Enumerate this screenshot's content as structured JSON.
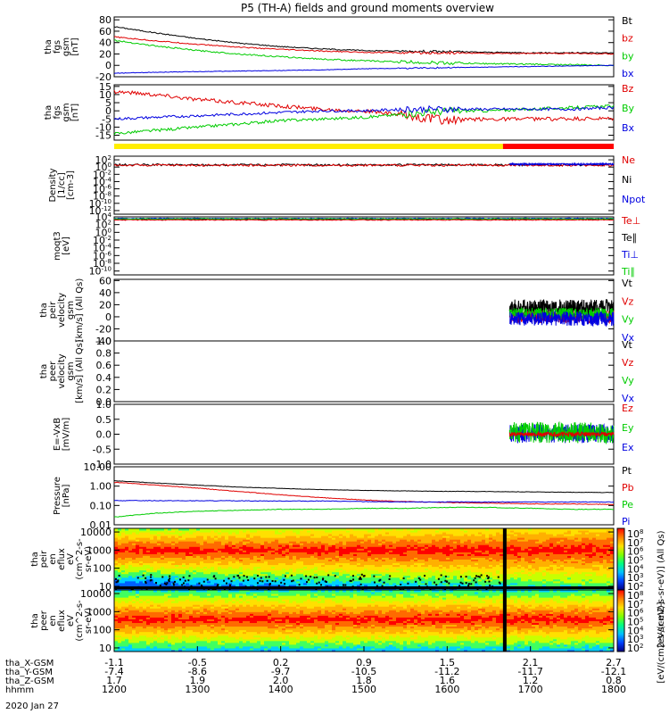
{
  "title": "P5 (TH-A) fields and ground moments overview",
  "date_label": "2020 Jan 27",
  "colorbar_labels": {
    "peir": "[eV/(cm2-s-sr-eV)] (All Qs)",
    "peer": "[eV/(cm2-s-sr-eV)]"
  },
  "chart_data": [
    {
      "type": "line",
      "id": "fgs_gsm",
      "ylabel": [
        "tha",
        "fgs",
        "gsm",
        "[nT]"
      ],
      "ylim": [
        -20,
        85
      ],
      "ticks": [
        "80",
        "60",
        "40",
        "20",
        "0",
        "-20"
      ],
      "tick_values": [
        80,
        60,
        40,
        20,
        0,
        -20
      ],
      "legend": [
        {
          "name": "Bt",
          "color": "#000000"
        },
        {
          "name": "bz",
          "color": "#e00000"
        },
        {
          "name": "by",
          "color": "#00cc00"
        },
        {
          "name": "bx",
          "color": "#0000e0"
        }
      ],
      "series": [
        {
          "name": "Bt",
          "color": "#000000",
          "x": [
            1200,
            1250,
            1300,
            1350,
            1400,
            1450,
            1500,
            1550,
            1600,
            1650,
            1700,
            1750,
            1800
          ],
          "values": [
            68,
            57,
            47,
            39,
            33,
            29,
            26,
            25,
            24,
            23,
            22,
            22,
            22
          ],
          "noise": 0.9
        },
        {
          "name": "bz",
          "color": "#e00000",
          "x": [
            1200,
            1250,
            1300,
            1350,
            1400,
            1450,
            1500,
            1550,
            1600,
            1650,
            1700,
            1750,
            1800
          ],
          "values": [
            50,
            43,
            37,
            32,
            28,
            25,
            23,
            22,
            22,
            21,
            21,
            21,
            20
          ],
          "noise": 0.9
        },
        {
          "name": "by",
          "color": "#00cc00",
          "x": [
            1200,
            1250,
            1300,
            1350,
            1400,
            1450,
            1500,
            1550,
            1600,
            1650,
            1700,
            1750,
            1800
          ],
          "values": [
            44,
            34,
            26,
            20,
            15,
            11,
            8,
            6,
            4,
            3,
            2,
            1,
            0
          ],
          "noise": 1.2
        },
        {
          "name": "bx",
          "color": "#0000e0",
          "x": [
            1200,
            1250,
            1300,
            1350,
            1400,
            1450,
            1500,
            1550,
            1600,
            1650,
            1700,
            1750,
            1800
          ],
          "values": [
            -14,
            -12,
            -11,
            -10,
            -9,
            -8,
            -6,
            -5,
            -4,
            -3,
            -2,
            -1,
            0
          ],
          "noise": 0.5
        }
      ]
    },
    {
      "type": "line",
      "id": "fgs_gse",
      "ylabel": [
        "tha",
        "fgs",
        "gsm",
        "[nT]"
      ],
      "ylim": [
        -18,
        16
      ],
      "ticks": [
        "15",
        "10",
        "5",
        "0",
        "-5",
        "-10",
        "-15"
      ],
      "tick_values": [
        15,
        10,
        5,
        0,
        -5,
        -10,
        -15
      ],
      "legend": [
        {
          "name": "Bz",
          "color": "#e00000"
        },
        {
          "name": "By",
          "color": "#00cc00"
        },
        {
          "name": "Bx",
          "color": "#0000e0"
        }
      ],
      "series": [
        {
          "name": "Bz",
          "color": "#e00000",
          "x": [
            1200,
            1250,
            1300,
            1350,
            1400,
            1450,
            1500,
            1550,
            1600,
            1650,
            1700,
            1750,
            1800
          ],
          "values": [
            12,
            10,
            7,
            5,
            3,
            1,
            0,
            -3,
            -6,
            -5,
            -5,
            -5,
            -5
          ],
          "noise": 1.2
        },
        {
          "name": "By",
          "color": "#00cc00",
          "x": [
            1200,
            1250,
            1300,
            1350,
            1400,
            1450,
            1500,
            1550,
            1600,
            1650,
            1700,
            1750,
            1800
          ],
          "values": [
            -14,
            -12,
            -10,
            -8,
            -6,
            -5,
            -4,
            -2,
            0,
            0,
            1,
            2,
            3
          ],
          "noise": 0.9
        },
        {
          "name": "Bx",
          "color": "#0000e0",
          "x": [
            1200,
            1250,
            1300,
            1350,
            1400,
            1450,
            1500,
            1550,
            1600,
            1650,
            1700,
            1750,
            1800
          ],
          "values": [
            -5,
            -4,
            -3,
            -2,
            -1,
            0,
            0,
            1,
            1,
            1,
            1,
            1,
            2
          ],
          "noise": 0.8
        }
      ]
    },
    {
      "type": "line",
      "id": "density",
      "ylabel": [
        "Density",
        "[1/cc]",
        "[cm-3]"
      ],
      "ylim_log": [
        -13,
        3
      ],
      "ticks": [
        "10^2",
        "10^0",
        "10^-2",
        "10^-4",
        "10^-6",
        "10^-8",
        "10^-10",
        "10^-12"
      ],
      "tick_values": [
        2,
        0,
        -2,
        -4,
        -6,
        -8,
        -10,
        -12
      ],
      "legend": [
        {
          "name": "Ne",
          "color": "#e00000"
        },
        {
          "name": "Ni",
          "color": "#000000"
        },
        {
          "name": "Npot",
          "color": "#0000e0"
        }
      ],
      "series": [
        {
          "name": "Ni",
          "color": "#000000",
          "x": [
            1200,
            1800
          ],
          "values": [
            0.6,
            0.6
          ],
          "noise": 0.3
        },
        {
          "name": "Ne",
          "color": "#e00000",
          "x": [
            1200,
            1800
          ],
          "values": [
            0.5,
            0.5
          ],
          "noise": 0.3
        },
        {
          "name": "Npot",
          "color": "#0000e0",
          "x": [
            1675,
            1800
          ],
          "values": [
            0.8,
            0.8
          ],
          "noise": 0.2
        }
      ]
    },
    {
      "type": "line",
      "id": "moqt3",
      "ylabel": [
        "moqt3",
        "[eV]"
      ],
      "ylim_log": [
        -11,
        4
      ],
      "ticks": [
        "10^4",
        "10^2",
        "10^0",
        "10^-2",
        "10^-4",
        "10^-6",
        "10^-8",
        "10^-10"
      ],
      "tick_values": [
        4,
        2,
        0,
        -2,
        -4,
        -6,
        -8,
        -10
      ],
      "legend": [
        {
          "name": "Te⊥",
          "color": "#e00000"
        },
        {
          "name": "Te∥",
          "color": "#000000"
        },
        {
          "name": "Ti⊥",
          "color": "#0000e0"
        },
        {
          "name": "Ti∥",
          "color": "#00cc00"
        }
      ],
      "series": [
        {
          "name": "Te∥",
          "color": "#000000",
          "x": [
            1200,
            1800
          ],
          "values": [
            3.3,
            3.4
          ],
          "noise": 0.1
        },
        {
          "name": "Te⊥",
          "color": "#e00000",
          "x": [
            1200,
            1800
          ],
          "values": [
            3.2,
            3.2
          ],
          "noise": 0.1
        },
        {
          "name": "Ti⊥",
          "color": "#0000e0",
          "x": [
            1200,
            1800
          ],
          "values": [
            3.6,
            3.6
          ],
          "noise": 0.1
        },
        {
          "name": "Ti∥",
          "color": "#00cc00",
          "x": [
            1200,
            1800
          ],
          "values": [
            3.5,
            3.5
          ],
          "noise": 0.1
        }
      ]
    },
    {
      "type": "line",
      "id": "peir_velocity",
      "ylabel": [
        "tha",
        "peir",
        "velocity",
        "gsm",
        "[km/s] (All Qs)"
      ],
      "ylim": [
        -40,
        62
      ],
      "ticks": [
        "60",
        "40",
        "20",
        "0",
        "-20",
        "-40"
      ],
      "tick_values": [
        60,
        40,
        20,
        0,
        -20,
        -40
      ],
      "legend": [
        {
          "name": "Vt",
          "color": "#000000"
        },
        {
          "name": "Vz",
          "color": "#e00000"
        },
        {
          "name": "Vy",
          "color": "#00cc00"
        },
        {
          "name": "Vx",
          "color": "#0000e0"
        }
      ],
      "series": [
        {
          "name": "Vt",
          "color": "#000000",
          "x": [
            1675,
            1800
          ],
          "values": [
            15,
            15
          ],
          "noise": 14
        },
        {
          "name": "Vz",
          "color": "#e00000",
          "x": [
            1675,
            1800
          ],
          "values": [
            0,
            0
          ],
          "noise": 10
        },
        {
          "name": "Vy",
          "color": "#00cc00",
          "x": [
            1675,
            1800
          ],
          "values": [
            5,
            5
          ],
          "noise": 10
        },
        {
          "name": "Vx",
          "color": "#0000e0",
          "x": [
            1675,
            1800
          ],
          "values": [
            -3,
            -3
          ],
          "noise": 12
        }
      ]
    },
    {
      "type": "line",
      "id": "peer_velocity",
      "ylabel": [
        "tha",
        "peer",
        "velocity",
        "gsm",
        "[km/s] (All Qs)"
      ],
      "ylim": [
        0,
        1
      ],
      "ticks": [
        "1.0",
        "0.8",
        "0.6",
        "0.4",
        "0.2",
        "0.0"
      ],
      "tick_values": [
        1,
        0.8,
        0.6,
        0.4,
        0.2,
        0
      ],
      "legend": [
        {
          "name": "Vt",
          "color": "#000000"
        },
        {
          "name": "Vz",
          "color": "#e00000"
        },
        {
          "name": "Vy",
          "color": "#00cc00"
        },
        {
          "name": "Vx",
          "color": "#0000e0"
        }
      ],
      "series": []
    },
    {
      "type": "line",
      "id": "efield",
      "ylabel": [
        "E=-VxB",
        "[mV/m]"
      ],
      "ylim": [
        -1.0,
        1.0
      ],
      "ticks": [
        "1.0",
        "0.5",
        "0.0",
        "-0.5",
        "-1.0"
      ],
      "tick_values": [
        1,
        0.5,
        0,
        -0.5,
        -1
      ],
      "legend": [
        {
          "name": "Ez",
          "color": "#e00000"
        },
        {
          "name": "Ey",
          "color": "#00cc00"
        },
        {
          "name": "Ex",
          "color": "#0000e0"
        }
      ],
      "series": [
        {
          "name": "Ex",
          "color": "#0000e0",
          "x": [
            1675,
            1800
          ],
          "values": [
            0.02,
            0.02
          ],
          "noise": 0.32
        },
        {
          "name": "Ey",
          "color": "#00cc00",
          "x": [
            1675,
            1800
          ],
          "values": [
            0.05,
            0.05
          ],
          "noise": 0.35
        },
        {
          "name": "Ez",
          "color": "#e00000",
          "x": [
            1675,
            1800
          ],
          "values": [
            0.0,
            0.0
          ],
          "noise": 0.07
        }
      ]
    },
    {
      "type": "line",
      "id": "pressure",
      "ylabel": [
        "Pressure",
        "[nPa]"
      ],
      "ylim_log": [
        -2,
        1
      ],
      "ticks": [
        "10.00",
        "1.00",
        "0.10",
        "0.01"
      ],
      "tick_values": [
        1,
        0,
        -1,
        -2
      ],
      "legend": [
        {
          "name": "Pt",
          "color": "#000000"
        },
        {
          "name": "Pb",
          "color": "#e00000"
        },
        {
          "name": "Pe",
          "color": "#00cc00"
        },
        {
          "name": "Pi",
          "color": "#0000e0"
        }
      ],
      "series": [
        {
          "name": "Pt",
          "color": "#000000",
          "x": [
            1200,
            1250,
            1300,
            1350,
            1400,
            1450,
            1500,
            1550,
            1600,
            1650,
            1700,
            1750,
            1800
          ],
          "values": [
            0.28,
            0.16,
            0.05,
            -0.05,
            -0.12,
            -0.18,
            -0.22,
            -0.25,
            -0.27,
            -0.28,
            -0.3,
            -0.32,
            -0.33
          ],
          "noise": 0.01
        },
        {
          "name": "Pb",
          "color": "#e00000",
          "x": [
            1200,
            1250,
            1300,
            1350,
            1400,
            1450,
            1500,
            1550,
            1600,
            1650,
            1700,
            1750,
            1800
          ],
          "values": [
            0.2,
            0.05,
            -0.1,
            -0.28,
            -0.45,
            -0.6,
            -0.72,
            -0.8,
            -0.85,
            -0.88,
            -0.92,
            -0.92,
            -0.95
          ],
          "noise": 0.015
        },
        {
          "name": "Pe",
          "color": "#00cc00",
          "x": [
            1200,
            1250,
            1300,
            1350,
            1400,
            1450,
            1500,
            1550,
            1600,
            1650,
            1700,
            1750,
            1800
          ],
          "values": [
            -1.6,
            -1.4,
            -1.3,
            -1.25,
            -1.2,
            -1.2,
            -1.15,
            -1.15,
            -1.1,
            -1.1,
            -1.15,
            -1.2,
            -1.2
          ],
          "noise": 0.015
        },
        {
          "name": "Pi",
          "color": "#0000e0",
          "x": [
            1200,
            1250,
            1300,
            1350,
            1400,
            1450,
            1500,
            1550,
            1600,
            1650,
            1700,
            1750,
            1800
          ],
          "values": [
            -0.75,
            -0.75,
            -0.76,
            -0.76,
            -0.77,
            -0.77,
            -0.8,
            -0.82,
            -0.82,
            -0.82,
            -0.82,
            -0.82,
            -0.82
          ],
          "noise": 0.015
        }
      ]
    },
    {
      "type": "heatmap",
      "id": "peir_spectrogram",
      "ylabel": [
        "tha",
        "peir",
        "en",
        "eflux",
        "eV",
        "(cm^2-s-",
        "sr-eV)"
      ],
      "ylim_log": [
        0.8,
        4.2
      ],
      "ticks": [
        "10000",
        "1000",
        "100",
        "10"
      ],
      "tick_values": [
        4,
        3,
        2,
        1
      ],
      "colorbar_ticks": [
        "10^8",
        "10^7",
        "10^6",
        "10^5",
        "10^4",
        "10^3",
        "10^2"
      ],
      "peak_log_energy": 3.0,
      "background_level": 0.6
    },
    {
      "type": "heatmap",
      "id": "peer_spectrogram",
      "ylabel": [
        "tha",
        "peer",
        "en",
        "eflux",
        "eV",
        "(cm^2-s-",
        "sr-eV)"
      ],
      "ylim_log": [
        0.8,
        4.2
      ],
      "ticks": [
        "10000",
        "1000",
        "100",
        "10"
      ],
      "tick_values": [
        4,
        3,
        2,
        1
      ],
      "colorbar_ticks": [
        "10^8",
        "10^7",
        "10^6",
        "10^5",
        "10^4",
        "10^3",
        "10^2"
      ],
      "peak_log_energy": 2.6,
      "background_level": 0.75
    }
  ],
  "time_axis": {
    "x_range": [
      1200,
      1800
    ],
    "row_labels": [
      "tha_X-GSM",
      "tha_Y-GSM",
      "tha_Z-GSM",
      "hhmm"
    ],
    "columns": [
      {
        "x": 1200,
        "values": [
          "-1.1",
          "-7.4",
          "1.7",
          "1200"
        ]
      },
      {
        "x": 1300,
        "values": [
          "-0.5",
          "-8.6",
          "1.9",
          "1300"
        ]
      },
      {
        "x": 1400,
        "values": [
          "0.2",
          "-9.7",
          "2.0",
          "1400"
        ]
      },
      {
        "x": 1500,
        "values": [
          "0.9",
          "-10.5",
          "1.8",
          "1500"
        ]
      },
      {
        "x": 1600,
        "values": [
          "1.5",
          "-11.2",
          "1.6",
          "1600"
        ]
      },
      {
        "x": 1700,
        "values": [
          "2.1",
          "-11.7",
          "1.2",
          "1700"
        ]
      },
      {
        "x": 1800,
        "values": [
          "2.7",
          "-12.1",
          "0.8",
          "1800"
        ]
      }
    ]
  },
  "mode_bar": {
    "segments": [
      {
        "x0": 1200,
        "x1": 1667,
        "color": "#ffee00"
      },
      {
        "x0": 1667,
        "x1": 1800,
        "color": "#ff0000"
      }
    ]
  }
}
